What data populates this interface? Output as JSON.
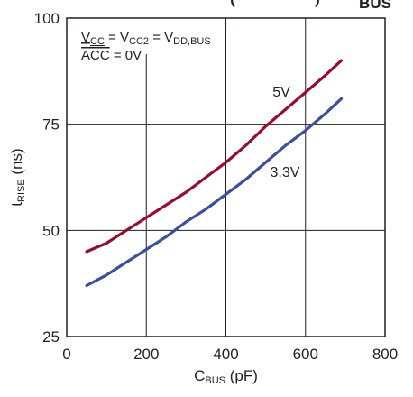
{
  "chart_data": {
    "type": "line",
    "title_fragment": {
      "main": "(",
      "right": ")",
      "subscript": "BUS"
    },
    "xlabel": {
      "main": "C",
      "sub": "BUS",
      "unit": " (pF)"
    },
    "ylabel": {
      "main": "t",
      "sub": "RISE",
      "unit": " (ns)"
    },
    "xlim": [
      0,
      800
    ],
    "ylim": [
      25,
      100
    ],
    "x_ticks": [
      0,
      200,
      400,
      600,
      800
    ],
    "y_ticks": [
      25,
      50,
      75,
      100
    ],
    "grid": true,
    "conditions": [
      {
        "parts": [
          {
            "t": "V",
            "u": true
          },
          {
            "t": "CC",
            "sub": true,
            "u": true
          },
          {
            "t": " = V"
          },
          {
            "t": "CC2",
            "sub": true
          },
          {
            "t": " = V"
          },
          {
            "t": "DD,BUS",
            "sub": true
          }
        ]
      },
      {
        "parts": [
          {
            "t": "ACC",
            "over": true
          },
          {
            "t": " = 0V"
          }
        ]
      }
    ],
    "series": [
      {
        "name": "5V",
        "color": "#9b0b2c",
        "x": [
          50,
          100,
          150,
          200,
          250,
          300,
          350,
          400,
          450,
          500,
          550,
          600,
          650,
          690
        ],
        "y": [
          45,
          47,
          50,
          53,
          56,
          59,
          62.5,
          66,
          70,
          74.5,
          78.5,
          82.5,
          86.5,
          90
        ]
      },
      {
        "name": "3.3V",
        "color": "#3b4fa0",
        "x": [
          50,
          100,
          150,
          200,
          250,
          300,
          350,
          400,
          450,
          500,
          550,
          600,
          650,
          690
        ],
        "y": [
          37,
          39.5,
          42.5,
          45.5,
          48.5,
          52,
          55,
          58.5,
          62,
          66,
          70,
          73.5,
          77.5,
          81
        ]
      }
    ]
  }
}
